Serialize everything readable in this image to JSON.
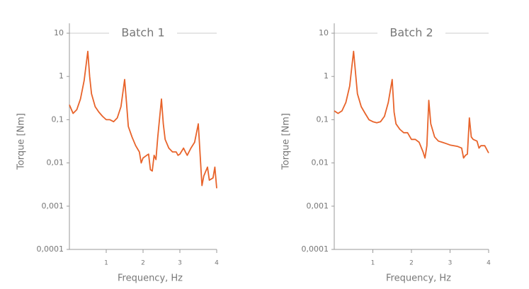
{
  "chart_data": [
    {
      "type": "line",
      "title": "Batch 1",
      "xlabel": "Frequency, Hz",
      "ylabel": "Torque [Nm]",
      "color": "#e8632a",
      "log_y": true,
      "grid": false,
      "xlim": [
        0,
        4
      ],
      "xticks": [
        1,
        2,
        3,
        4
      ],
      "ylim": [
        0.0001,
        10
      ],
      "yticks": [
        10,
        1,
        {
          "value": 0.1,
          "label": "0,1"
        },
        {
          "value": 0.01,
          "label": "0,01"
        },
        {
          "value": 0.001,
          "label": "0,001"
        },
        {
          "value": 0.0001,
          "label": "0,0001"
        }
      ],
      "x": [
        0,
        0.1,
        0.2,
        0.3,
        0.4,
        0.5,
        0.55,
        0.6,
        0.7,
        0.8,
        0.9,
        1.0,
        1.1,
        1.2,
        1.3,
        1.4,
        1.5,
        1.55,
        1.6,
        1.7,
        1.8,
        1.9,
        1.95,
        2.0,
        2.1,
        2.15,
        2.2,
        2.25,
        2.3,
        2.35,
        2.4,
        2.5,
        2.55,
        2.6,
        2.7,
        2.8,
        2.9,
        2.95,
        3.0,
        3.1,
        3.15,
        3.2,
        3.3,
        3.4,
        3.5,
        3.6,
        3.65,
        3.75,
        3.8,
        3.9,
        3.95,
        4.0
      ],
      "values": [
        0.22,
        0.14,
        0.17,
        0.3,
        0.8,
        3.8,
        1.0,
        0.4,
        0.2,
        0.15,
        0.12,
        0.1,
        0.1,
        0.09,
        0.11,
        0.2,
        0.85,
        0.25,
        0.07,
        0.04,
        0.025,
        0.018,
        0.01,
        0.013,
        0.015,
        0.016,
        0.007,
        0.0065,
        0.015,
        0.012,
        0.04,
        0.3,
        0.08,
        0.035,
        0.022,
        0.018,
        0.018,
        0.015,
        0.016,
        0.022,
        0.018,
        0.015,
        0.022,
        0.03,
        0.08,
        0.003,
        0.005,
        0.008,
        0.004,
        0.0045,
        0.008,
        0.0026
      ]
    },
    {
      "type": "line",
      "title": "Batch 2",
      "xlabel": "Frequency, Hz",
      "ylabel": "Torque [Nm]",
      "color": "#e8632a",
      "log_y": true,
      "grid": false,
      "xlim": [
        0,
        4
      ],
      "xticks": [
        1,
        2,
        3,
        4
      ],
      "ylim": [
        0.0001,
        10
      ],
      "yticks": [
        10,
        1,
        {
          "value": 0.1,
          "label": "0,1"
        },
        {
          "value": 0.01,
          "label": "0,01"
        },
        {
          "value": 0.001,
          "label": "0,001"
        },
        {
          "value": 0.0001,
          "label": "0,0001"
        }
      ],
      "x": [
        0,
        0.1,
        0.2,
        0.3,
        0.4,
        0.45,
        0.5,
        0.6,
        0.7,
        0.8,
        0.9,
        1.0,
        1.1,
        1.2,
        1.3,
        1.4,
        1.5,
        1.55,
        1.6,
        1.7,
        1.8,
        1.9,
        2.0,
        2.1,
        2.2,
        2.3,
        2.35,
        2.4,
        2.45,
        2.5,
        2.6,
        2.7,
        2.8,
        2.9,
        3.0,
        3.1,
        3.2,
        3.3,
        3.35,
        3.4,
        3.45,
        3.5,
        3.55,
        3.6,
        3.7,
        3.75,
        3.8,
        3.9,
        4.0
      ],
      "values": [
        0.16,
        0.14,
        0.16,
        0.25,
        0.6,
        1.5,
        3.8,
        0.4,
        0.2,
        0.14,
        0.1,
        0.09,
        0.085,
        0.09,
        0.12,
        0.25,
        0.85,
        0.15,
        0.08,
        0.06,
        0.05,
        0.05,
        0.035,
        0.035,
        0.03,
        0.018,
        0.013,
        0.025,
        0.28,
        0.08,
        0.04,
        0.032,
        0.03,
        0.028,
        0.026,
        0.025,
        0.024,
        0.022,
        0.013,
        0.015,
        0.016,
        0.11,
        0.04,
        0.035,
        0.032,
        0.022,
        0.025,
        0.025,
        0.017
      ]
    }
  ]
}
